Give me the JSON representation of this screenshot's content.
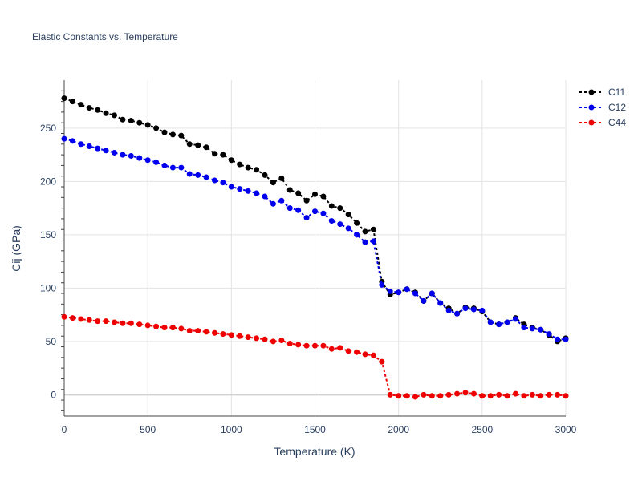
{
  "chart_data": {
    "type": "line",
    "title": "Elastic Constants vs. Temperature",
    "xlabel": "Temperature (K)",
    "ylabel": "Cij (GPa)",
    "xlim": [
      0,
      3000
    ],
    "ylim": [
      -20,
      295
    ],
    "xticks": [
      0,
      500,
      1000,
      1500,
      2000,
      2500,
      3000
    ],
    "yticks": [
      0,
      50,
      100,
      150,
      200,
      250
    ],
    "grid": true,
    "legend_position": "top-right",
    "x": [
      0,
      50,
      100,
      150,
      200,
      250,
      300,
      350,
      400,
      450,
      500,
      550,
      600,
      650,
      700,
      750,
      800,
      850,
      900,
      950,
      1000,
      1050,
      1100,
      1150,
      1200,
      1250,
      1300,
      1350,
      1400,
      1450,
      1500,
      1550,
      1600,
      1650,
      1700,
      1750,
      1800,
      1850,
      1900,
      1950,
      2000,
      2050,
      2100,
      2150,
      2200,
      2250,
      2300,
      2350,
      2400,
      2450,
      2500,
      2550,
      2600,
      2650,
      2700,
      2750,
      2800,
      2850,
      2900,
      2950,
      3000
    ],
    "series": [
      {
        "name": "C11",
        "color": "#000000",
        "values": [
          278,
          275,
          272,
          269,
          267,
          264,
          262,
          258,
          257,
          255,
          253,
          250,
          246,
          244,
          243,
          235,
          234,
          232,
          226,
          225,
          220,
          216,
          213,
          211,
          206,
          199,
          203,
          192,
          189,
          182,
          188,
          186,
          177,
          175,
          169,
          161,
          153,
          155,
          106,
          94,
          96,
          99,
          96,
          88,
          95,
          86,
          81,
          76,
          82,
          81,
          78,
          68,
          66,
          68,
          72,
          66,
          63,
          61,
          56,
          50,
          53
        ]
      },
      {
        "name": "C12",
        "color": "#0000ee",
        "values": [
          240,
          238,
          235,
          233,
          231,
          229,
          227,
          225,
          224,
          222,
          220,
          218,
          215,
          213,
          213,
          207,
          206,
          204,
          201,
          199,
          195,
          193,
          191,
          189,
          186,
          179,
          182,
          175,
          173,
          166,
          172,
          170,
          163,
          160,
          156,
          150,
          143,
          144,
          103,
          97,
          96,
          99,
          95,
          88,
          95,
          86,
          79,
          76,
          81,
          80,
          79,
          68,
          66,
          68,
          71,
          63,
          62,
          61,
          57,
          52,
          52
        ]
      },
      {
        "name": "C44",
        "color": "#ee0000",
        "values": [
          73,
          72,
          71,
          70,
          69,
          69,
          68,
          67,
          67,
          66,
          65,
          64,
          63,
          63,
          62,
          60,
          60,
          59,
          58,
          57,
          56,
          55,
          54,
          53,
          52,
          50,
          51,
          48,
          47,
          46,
          46,
          46,
          43,
          44,
          41,
          40,
          38,
          37,
          31,
          0,
          -1,
          -1,
          -2,
          0,
          -1,
          -1,
          0,
          1,
          2,
          1,
          -1,
          -1,
          0,
          -1,
          1,
          -1,
          0,
          -1,
          0,
          0,
          -1
        ]
      }
    ]
  }
}
